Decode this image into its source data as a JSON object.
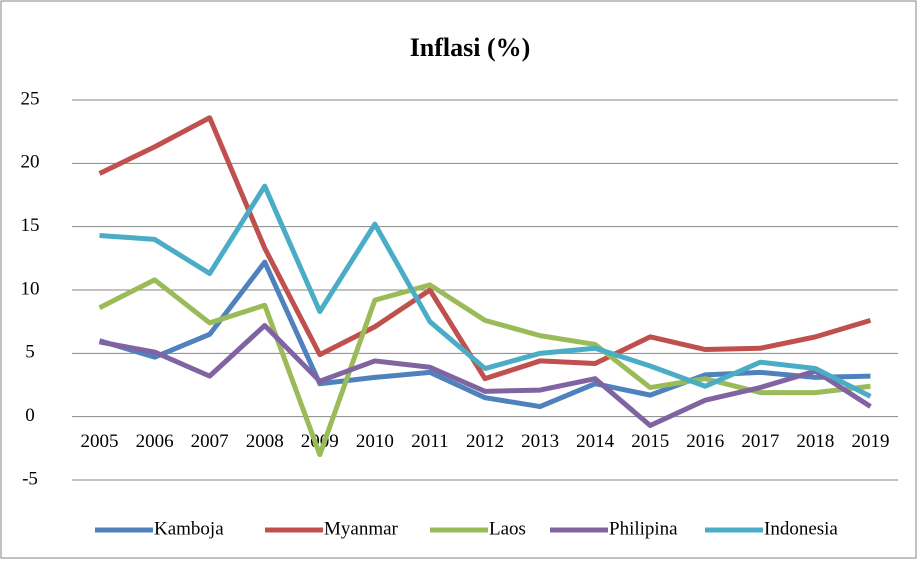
{
  "chart_data": {
    "type": "line",
    "title": "Inflasi (%)",
    "categories": [
      "2005",
      "2006",
      "2007",
      "2008",
      "2009",
      "2010",
      "2011",
      "2012",
      "2013",
      "2014",
      "2015",
      "2016",
      "2017",
      "2018",
      "2019"
    ],
    "ylim": [
      -5,
      25
    ],
    "yticks": [
      -5,
      0,
      5,
      10,
      15,
      20,
      25
    ],
    "grid": true,
    "legend": "bottom",
    "series": [
      {
        "name": "Kamboja",
        "color": "#4f81bd",
        "values": [
          6.0,
          4.7,
          6.5,
          12.2,
          2.6,
          3.1,
          3.5,
          1.5,
          0.8,
          2.6,
          1.7,
          3.3,
          3.5,
          3.1,
          3.2
        ]
      },
      {
        "name": "Myanmar",
        "color": "#c0504d",
        "values": [
          19.2,
          21.3,
          23.6,
          13.3,
          4.9,
          7.1,
          10.0,
          3.0,
          4.4,
          4.2,
          6.3,
          5.3,
          5.4,
          6.3,
          7.6
        ]
      },
      {
        "name": "Laos",
        "color": "#9bbb59",
        "values": [
          8.6,
          10.8,
          7.4,
          8.8,
          -3.0,
          9.2,
          10.4,
          7.6,
          6.4,
          5.7,
          2.3,
          3.0,
          1.9,
          1.9,
          2.4
        ]
      },
      {
        "name": "Philipina",
        "color": "#8064a2",
        "values": [
          5.9,
          5.1,
          3.2,
          7.2,
          2.8,
          4.4,
          3.9,
          2.0,
          2.1,
          3.0,
          -0.7,
          1.3,
          2.3,
          3.6,
          0.8
        ]
      },
      {
        "name": "Indonesia",
        "color": "#4bacc6",
        "values": [
          14.3,
          14.0,
          11.3,
          18.2,
          8.3,
          15.2,
          7.5,
          3.8,
          5.0,
          5.4,
          4.0,
          2.4,
          4.3,
          3.8,
          1.6
        ]
      }
    ]
  }
}
